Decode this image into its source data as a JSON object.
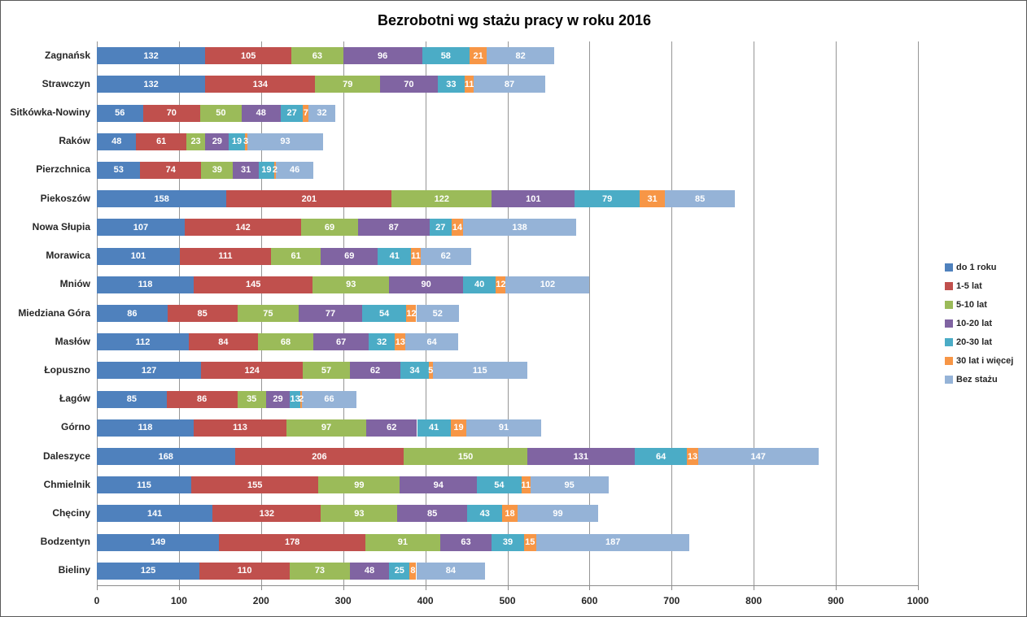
{
  "chart_data": {
    "type": "bar",
    "orientation": "horizontal-stacked",
    "title": "Bezrobotni wg stażu pracy w roku 2016",
    "grid": true,
    "legend_position": "right",
    "xlim": [
      0,
      1000
    ],
    "x_ticks": [
      0,
      100,
      200,
      300,
      400,
      500,
      600,
      700,
      800,
      900,
      1000
    ],
    "categories": [
      "Zagnańsk",
      "Strawczyn",
      "Sitkówka-Nowiny",
      "Raków",
      "Pierzchnica",
      "Piekoszów",
      "Nowa Słupia",
      "Morawica",
      "Mniów",
      "Miedziana Góra",
      "Masłów",
      "Łopuszno",
      "Łagów",
      "Górno",
      "Daleszyce",
      "Chmielnik",
      "Chęciny",
      "Bodzentyn",
      "Bieliny"
    ],
    "series": [
      {
        "name": "do 1 roku",
        "color": "#4F81BD",
        "values": [
          132,
          132,
          56,
          48,
          53,
          158,
          107,
          101,
          118,
          86,
          112,
          127,
          85,
          118,
          168,
          115,
          141,
          149,
          125
        ]
      },
      {
        "name": "1-5 lat",
        "color": "#C0504D",
        "values": [
          105,
          134,
          70,
          61,
          74,
          201,
          142,
          111,
          145,
          85,
          84,
          124,
          86,
          113,
          206,
          155,
          132,
          178,
          110
        ]
      },
      {
        "name": "5-10 lat",
        "color": "#9BBB59",
        "values": [
          63,
          79,
          50,
          23,
          39,
          122,
          69,
          61,
          93,
          75,
          68,
          57,
          35,
          97,
          150,
          99,
          93,
          91,
          73
        ]
      },
      {
        "name": "10-20 lat",
        "color": "#8064A2",
        "values": [
          96,
          70,
          48,
          29,
          31,
          101,
          87,
          69,
          90,
          77,
          67,
          62,
          29,
          62,
          131,
          94,
          85,
          63,
          48
        ]
      },
      {
        "name": "20-30 lat",
        "color": "#4BACC6",
        "values": [
          58,
          33,
          27,
          19,
          19,
          79,
          27,
          41,
          40,
          54,
          32,
          34,
          13,
          41,
          64,
          54,
          43,
          39,
          25
        ]
      },
      {
        "name": "30 lat i więcej",
        "color": "#F79646",
        "values": [
          21,
          11,
          7,
          3,
          2,
          31,
          14,
          11,
          12,
          12,
          13,
          5,
          2,
          19,
          13,
          11,
          18,
          15,
          8
        ]
      },
      {
        "name": "Bez stażu",
        "color": "#95B3D7",
        "values": [
          82,
          87,
          32,
          93,
          46,
          85,
          138,
          62,
          102,
          52,
          64,
          115,
          66,
          91,
          147,
          95,
          99,
          187,
          84
        ]
      }
    ]
  }
}
